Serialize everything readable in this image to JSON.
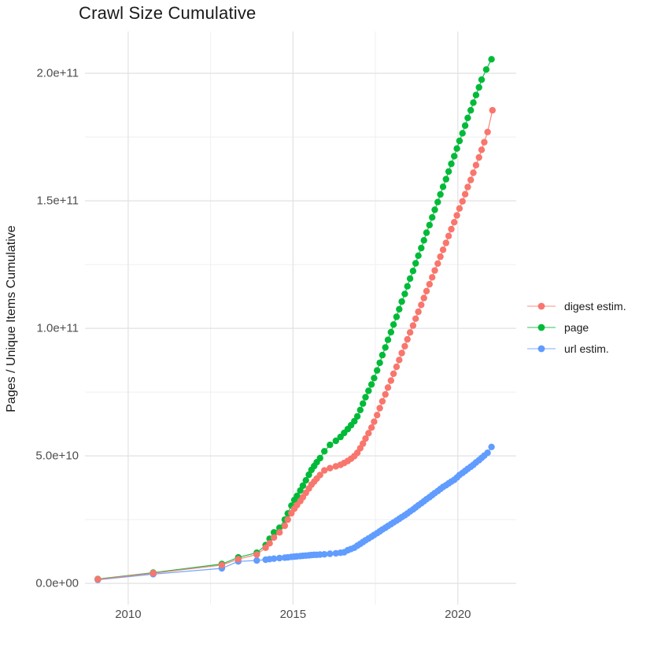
{
  "title": "Crawl Size Cumulative",
  "y_axis_title": "Pages / Unique Items Cumulative",
  "legend": {
    "position": "right",
    "items": [
      {
        "label": "digest estim.",
        "color": "#F8766D"
      },
      {
        "label": "page",
        "color": "#00BA38"
      },
      {
        "label": "url estim.",
        "color": "#619CFF"
      }
    ]
  },
  "colors": {
    "background": "#FFFFFF",
    "grid_major": "#E2E2E2",
    "grid_minor": "#EFEFEF",
    "tick_text": "#4D4D4D",
    "title_text": "#1A1A1A",
    "series_red": "#F8766D",
    "series_green": "#00BA38",
    "series_blue": "#619CFF"
  },
  "chart_data": {
    "type": "scatter",
    "title": "Crawl Size Cumulative",
    "xlabel": "",
    "ylabel": "Pages / Unique Items Cumulative",
    "legend_position": "right",
    "grid": true,
    "units_note": "y values stored in billions (1e9); axis shows scientific notation",
    "xlim": [
      2008.69,
      2021.77
    ],
    "ylim_e9": [
      -8.3,
      216.4
    ],
    "x_ticks": {
      "values": [
        2010,
        2015,
        2020
      ],
      "labels": [
        "2010",
        "2015",
        "2020"
      ]
    },
    "x_minor": [
      2012.5,
      2017.5
    ],
    "y_ticks": {
      "values_e9": [
        0,
        50,
        100,
        150,
        200
      ],
      "labels": [
        "0.0e+00",
        "5.0e+10",
        "1.0e+11",
        "1.5e+11",
        "2.0e+11"
      ]
    },
    "y_minor_e9": [
      25,
      75,
      125,
      175
    ],
    "series": [
      {
        "name": "digest estim.",
        "color": "#F8766D",
        "points": [
          [
            2009.08,
            1.6
          ],
          [
            2010.76,
            4.0
          ],
          [
            2012.84,
            7.2
          ],
          [
            2013.34,
            9.5
          ],
          [
            2013.9,
            11.3
          ],
          [
            2014.17,
            14.0
          ],
          [
            2014.29,
            15.7
          ],
          [
            2014.42,
            18.0
          ],
          [
            2014.59,
            20.0
          ],
          [
            2014.75,
            22.6
          ],
          [
            2014.84,
            25.0
          ],
          [
            2014.95,
            27.5
          ],
          [
            2015.04,
            29.3
          ],
          [
            2015.12,
            30.7
          ],
          [
            2015.22,
            32.3
          ],
          [
            2015.3,
            33.8
          ],
          [
            2015.39,
            35.5
          ],
          [
            2015.48,
            37.2
          ],
          [
            2015.56,
            38.7
          ],
          [
            2015.64,
            39.9
          ],
          [
            2015.72,
            41.1
          ],
          [
            2015.82,
            42.5
          ],
          [
            2015.95,
            44.3
          ],
          [
            2016.12,
            45.2
          ],
          [
            2016.3,
            45.9
          ],
          [
            2016.44,
            46.5
          ],
          [
            2016.55,
            47.2
          ],
          [
            2016.66,
            48.0
          ],
          [
            2016.76,
            48.9
          ],
          [
            2016.86,
            49.9
          ],
          [
            2016.95,
            51.2
          ],
          [
            2017.04,
            53.0
          ],
          [
            2017.12,
            54.8
          ],
          [
            2017.2,
            56.8
          ],
          [
            2017.29,
            58.9
          ],
          [
            2017.38,
            61.1
          ],
          [
            2017.46,
            63.4
          ],
          [
            2017.55,
            66.0
          ],
          [
            2017.63,
            68.7
          ],
          [
            2017.71,
            71.4
          ],
          [
            2017.8,
            74.1
          ],
          [
            2017.88,
            76.8
          ],
          [
            2017.97,
            79.5
          ],
          [
            2018.05,
            82.2
          ],
          [
            2018.14,
            84.9
          ],
          [
            2018.22,
            87.6
          ],
          [
            2018.3,
            90.3
          ],
          [
            2018.39,
            93.0
          ],
          [
            2018.47,
            95.7
          ],
          [
            2018.55,
            98.4
          ],
          [
            2018.64,
            101.1
          ],
          [
            2018.72,
            103.8
          ],
          [
            2018.8,
            106.5
          ],
          [
            2018.89,
            109.2
          ],
          [
            2018.97,
            111.9
          ],
          [
            2019.05,
            114.6
          ],
          [
            2019.14,
            117.3
          ],
          [
            2019.22,
            120.0
          ],
          [
            2019.3,
            122.7
          ],
          [
            2019.39,
            125.4
          ],
          [
            2019.47,
            128.1
          ],
          [
            2019.55,
            130.8
          ],
          [
            2019.64,
            133.5
          ],
          [
            2019.72,
            136.2
          ],
          [
            2019.8,
            138.9
          ],
          [
            2019.89,
            141.6
          ],
          [
            2019.97,
            144.3
          ],
          [
            2020.05,
            147.0
          ],
          [
            2020.14,
            149.8
          ],
          [
            2020.22,
            152.6
          ],
          [
            2020.3,
            155.4
          ],
          [
            2020.39,
            158.2
          ],
          [
            2020.47,
            161.0
          ],
          [
            2020.55,
            164.0
          ],
          [
            2020.64,
            167.0
          ],
          [
            2020.72,
            170.0
          ],
          [
            2020.8,
            173.0
          ],
          [
            2020.9,
            177.0
          ],
          [
            2021.05,
            185.5
          ]
        ]
      },
      {
        "name": "page",
        "color": "#00BA38",
        "points": [
          [
            2009.08,
            1.7
          ],
          [
            2010.76,
            4.2
          ],
          [
            2012.84,
            7.6
          ],
          [
            2013.34,
            10.2
          ],
          [
            2013.9,
            12.0
          ],
          [
            2014.17,
            15.0
          ],
          [
            2014.29,
            17.5
          ],
          [
            2014.42,
            20.0
          ],
          [
            2014.59,
            21.8
          ],
          [
            2014.75,
            25.0
          ],
          [
            2014.84,
            27.4
          ],
          [
            2014.95,
            30.5
          ],
          [
            2015.04,
            32.7
          ],
          [
            2015.12,
            34.3
          ],
          [
            2015.22,
            36.4
          ],
          [
            2015.3,
            38.3
          ],
          [
            2015.39,
            40.4
          ],
          [
            2015.48,
            42.6
          ],
          [
            2015.56,
            44.5
          ],
          [
            2015.64,
            46.0
          ],
          [
            2015.72,
            47.5
          ],
          [
            2015.82,
            49.1
          ],
          [
            2015.95,
            51.8
          ],
          [
            2016.12,
            54.3
          ],
          [
            2016.3,
            55.9
          ],
          [
            2016.44,
            57.4
          ],
          [
            2016.55,
            59.0
          ],
          [
            2016.66,
            60.5
          ],
          [
            2016.76,
            62.0
          ],
          [
            2016.86,
            63.6
          ],
          [
            2016.95,
            65.5
          ],
          [
            2017.04,
            68.0
          ],
          [
            2017.12,
            70.5
          ],
          [
            2017.2,
            73.0
          ],
          [
            2017.29,
            75.5
          ],
          [
            2017.38,
            78.0
          ],
          [
            2017.46,
            80.5
          ],
          [
            2017.55,
            83.5
          ],
          [
            2017.63,
            86.5
          ],
          [
            2017.71,
            89.5
          ],
          [
            2017.8,
            92.5
          ],
          [
            2017.88,
            95.5
          ],
          [
            2017.97,
            98.5
          ],
          [
            2018.05,
            101.5
          ],
          [
            2018.14,
            104.5
          ],
          [
            2018.22,
            107.5
          ],
          [
            2018.3,
            110.5
          ],
          [
            2018.39,
            113.5
          ],
          [
            2018.47,
            116.5
          ],
          [
            2018.55,
            119.5
          ],
          [
            2018.64,
            122.5
          ],
          [
            2018.72,
            125.5
          ],
          [
            2018.8,
            128.5
          ],
          [
            2018.89,
            131.5
          ],
          [
            2018.97,
            134.5
          ],
          [
            2019.05,
            137.5
          ],
          [
            2019.14,
            140.5
          ],
          [
            2019.22,
            143.5
          ],
          [
            2019.3,
            146.5
          ],
          [
            2019.39,
            149.5
          ],
          [
            2019.47,
            152.5
          ],
          [
            2019.55,
            155.5
          ],
          [
            2019.64,
            158.5
          ],
          [
            2019.72,
            161.5
          ],
          [
            2019.8,
            164.5
          ],
          [
            2019.89,
            167.5
          ],
          [
            2019.97,
            170.5
          ],
          [
            2020.05,
            173.5
          ],
          [
            2020.14,
            176.5
          ],
          [
            2020.22,
            179.5
          ],
          [
            2020.3,
            182.5
          ],
          [
            2020.39,
            185.5
          ],
          [
            2020.47,
            188.5
          ],
          [
            2020.55,
            191.5
          ],
          [
            2020.64,
            194.5
          ],
          [
            2020.72,
            197.5
          ],
          [
            2020.86,
            201.5
          ],
          [
            2021.02,
            205.5
          ]
        ]
      },
      {
        "name": "url estim.",
        "color": "#619CFF",
        "points": [
          [
            2009.08,
            1.4
          ],
          [
            2010.76,
            3.6
          ],
          [
            2012.84,
            5.9
          ],
          [
            2013.34,
            8.6
          ],
          [
            2013.9,
            9.0
          ],
          [
            2014.17,
            9.3
          ],
          [
            2014.29,
            9.5
          ],
          [
            2014.42,
            9.7
          ],
          [
            2014.59,
            9.9
          ],
          [
            2014.75,
            10.1
          ],
          [
            2014.84,
            10.2
          ],
          [
            2014.95,
            10.4
          ],
          [
            2015.04,
            10.5
          ],
          [
            2015.12,
            10.6
          ],
          [
            2015.22,
            10.7
          ],
          [
            2015.3,
            10.8
          ],
          [
            2015.39,
            10.9
          ],
          [
            2015.48,
            11.0
          ],
          [
            2015.56,
            11.1
          ],
          [
            2015.64,
            11.2
          ],
          [
            2015.72,
            11.2
          ],
          [
            2015.82,
            11.3
          ],
          [
            2015.95,
            11.4
          ],
          [
            2016.12,
            11.6
          ],
          [
            2016.3,
            11.8
          ],
          [
            2016.44,
            12.0
          ],
          [
            2016.55,
            12.2
          ],
          [
            2016.66,
            13.0
          ],
          [
            2016.76,
            13.5
          ],
          [
            2016.86,
            14.0
          ],
          [
            2016.95,
            14.8
          ],
          [
            2017.04,
            15.5
          ],
          [
            2017.12,
            16.2
          ],
          [
            2017.2,
            16.9
          ],
          [
            2017.29,
            17.6
          ],
          [
            2017.38,
            18.3
          ],
          [
            2017.46,
            19.0
          ],
          [
            2017.55,
            19.7
          ],
          [
            2017.63,
            20.4
          ],
          [
            2017.71,
            21.1
          ],
          [
            2017.8,
            21.8
          ],
          [
            2017.88,
            22.5
          ],
          [
            2017.97,
            23.2
          ],
          [
            2018.05,
            23.9
          ],
          [
            2018.14,
            24.6
          ],
          [
            2018.22,
            25.3
          ],
          [
            2018.3,
            26.0
          ],
          [
            2018.39,
            26.7
          ],
          [
            2018.47,
            27.4
          ],
          [
            2018.55,
            28.2
          ],
          [
            2018.64,
            29.0
          ],
          [
            2018.72,
            29.8
          ],
          [
            2018.8,
            30.6
          ],
          [
            2018.89,
            31.4
          ],
          [
            2018.97,
            32.2
          ],
          [
            2019.05,
            33.0
          ],
          [
            2019.14,
            33.8
          ],
          [
            2019.22,
            34.6
          ],
          [
            2019.3,
            35.4
          ],
          [
            2019.39,
            36.2
          ],
          [
            2019.47,
            37.0
          ],
          [
            2019.55,
            37.8
          ],
          [
            2019.64,
            38.5
          ],
          [
            2019.72,
            39.2
          ],
          [
            2019.8,
            39.9
          ],
          [
            2019.89,
            40.6
          ],
          [
            2019.97,
            41.5
          ],
          [
            2020.05,
            42.5
          ],
          [
            2020.14,
            43.3
          ],
          [
            2020.22,
            44.1
          ],
          [
            2020.3,
            44.9
          ],
          [
            2020.39,
            45.7
          ],
          [
            2020.47,
            46.5
          ],
          [
            2020.55,
            47.4
          ],
          [
            2020.64,
            48.3
          ],
          [
            2020.72,
            49.2
          ],
          [
            2020.8,
            50.1
          ],
          [
            2020.9,
            51.2
          ],
          [
            2021.02,
            53.5
          ]
        ]
      }
    ]
  }
}
